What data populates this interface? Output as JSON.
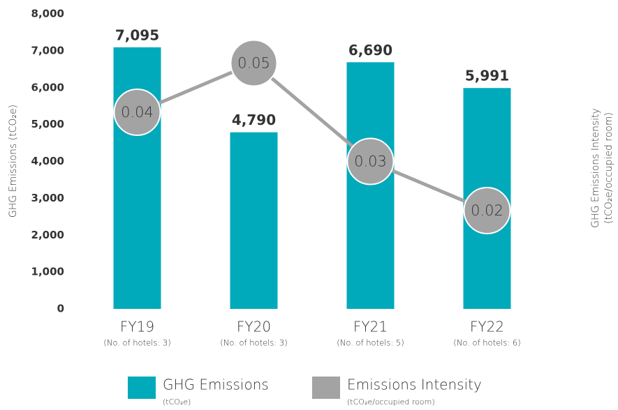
{
  "chart_data": {
    "type": "bar",
    "categories": [
      "FY19",
      "FY20",
      "FY21",
      "FY22"
    ],
    "category_notes": [
      "(No. of hotels: 3)",
      "(No. of hotels: 3)",
      "(No. of hotels: 5)",
      "(No. of hotels: 6)"
    ],
    "y_label": "GHG Emissions (tCO₂e)",
    "y2_label": [
      "GHG Emissions Intensity",
      "(tCO₂e/occupied room)"
    ],
    "ylim": [
      0,
      8000
    ],
    "yticks": [
      0,
      {
        "value": 1000,
        "label": "1,000"
      },
      {
        "value": 2000,
        "label": "2,000"
      },
      {
        "value": 3000,
        "label": "3,000"
      },
      {
        "value": 4000,
        "label": "4,000"
      },
      {
        "value": 5000,
        "label": "5,000"
      },
      {
        "value": 6000,
        "label": "6,000"
      },
      {
        "value": 7000,
        "label": "7,000"
      },
      {
        "value": 8000,
        "label": "8,000"
      }
    ],
    "y2lim": [
      0,
      0.06
    ],
    "series": [
      {
        "name": "GHG Emissions",
        "unit": "(tCO₂e)",
        "type": "bar",
        "color": "#00aabb",
        "values": [
          7095,
          4790,
          6690,
          5991
        ],
        "value_labels": [
          "7,095",
          "4,790",
          "6,690",
          "5,991"
        ]
      },
      {
        "name": "Emissions Intensity",
        "unit": "(tCO₂e/occupied room)",
        "type": "line",
        "axis": "y2",
        "color": "#a3a3a4",
        "values": [
          0.04,
          0.05,
          0.03,
          0.02
        ]
      }
    ]
  }
}
